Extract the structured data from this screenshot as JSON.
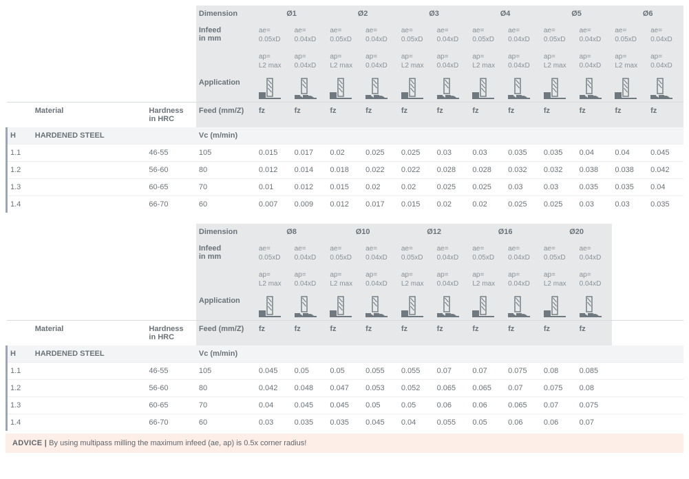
{
  "labels": {
    "dimension": "Dimension",
    "infeed": "Infeed\nin mm",
    "application": "Application",
    "material": "Material",
    "hardness": "Hardness\nin HRC",
    "feed": "Feed (mm/Z)",
    "vc": "Vc (m/min)",
    "fz": "fz",
    "ae1": "ae=\n0.05xD",
    "ae2": "ae=\n0.04xD",
    "ap1": "ap=\nL2 max",
    "ap2": "ap=\n0.04xD"
  },
  "group": {
    "code": "H",
    "name": "HARDENED STEEL"
  },
  "colors": {
    "header_bg": "#e6e8e9",
    "group_bg": "#f3f4f5",
    "border": "#eceeef",
    "text": "#6a7278",
    "muted": "#8a9197",
    "stripe": "#9aa7b2",
    "advice_bg": "#fdeee8",
    "icon_fill": "#6f787e"
  },
  "table1": {
    "diameters": [
      "Ø1",
      "Ø2",
      "Ø3",
      "Ø4",
      "Ø5",
      "Ø6"
    ],
    "rows": [
      {
        "code": "1.1",
        "hrc": "46-55",
        "vc": "105",
        "fz": [
          "0.015",
          "0.017",
          "0.02",
          "0.025",
          "0.025",
          "0.03",
          "0.03",
          "0.035",
          "0.035",
          "0.04",
          "0.04",
          "0.045"
        ]
      },
      {
        "code": "1.2",
        "hrc": "56-60",
        "vc": "80",
        "fz": [
          "0.012",
          "0.014",
          "0.018",
          "0.022",
          "0.022",
          "0.028",
          "0.028",
          "0.032",
          "0.032",
          "0.038",
          "0.038",
          "0.042"
        ]
      },
      {
        "code": "1.3",
        "hrc": "60-65",
        "vc": "70",
        "fz": [
          "0.01",
          "0.012",
          "0.015",
          "0.02",
          "0.02",
          "0.025",
          "0.025",
          "0.03",
          "0.03",
          "0.035",
          "0.035",
          "0.04"
        ]
      },
      {
        "code": "1.4",
        "hrc": "66-70",
        "vc": "60",
        "fz": [
          "0.007",
          "0.009",
          "0.012",
          "0.017",
          "0.015",
          "0.02",
          "0.02",
          "0.025",
          "0.025",
          "0.03",
          "0.03",
          "0.035"
        ]
      }
    ]
  },
  "table2": {
    "diameters": [
      "Ø8",
      "Ø10",
      "Ø12",
      "Ø16",
      "Ø20"
    ],
    "rows": [
      {
        "code": "1.1",
        "hrc": "46-55",
        "vc": "105",
        "fz": [
          "0.045",
          "0.05",
          "0.05",
          "0.055",
          "0.055",
          "0.07",
          "0.07",
          "0.075",
          "0.08",
          "0.085"
        ]
      },
      {
        "code": "1.2",
        "hrc": "56-60",
        "vc": "80",
        "fz": [
          "0.042",
          "0.048",
          "0.047",
          "0.053",
          "0.052",
          "0.065",
          "0.065",
          "0.07",
          "0.075",
          "0.08"
        ]
      },
      {
        "code": "1.3",
        "hrc": "60-65",
        "vc": "70",
        "fz": [
          "0.04",
          "0.045",
          "0.045",
          "0.05",
          "0.05",
          "0.06",
          "0.06",
          "0.065",
          "0.07",
          "0.075"
        ]
      },
      {
        "code": "1.4",
        "hrc": "66-70",
        "vc": "60",
        "fz": [
          "0.03",
          "0.035",
          "0.035",
          "0.045",
          "0.04",
          "0.055",
          "0.05",
          "0.06",
          "0.06",
          "0.07"
        ]
      }
    ]
  },
  "advice": {
    "label": "ADVICE",
    "text": "By using multipass milling the maximum infeed (ae, ap) is 0.5x corner radius!"
  }
}
